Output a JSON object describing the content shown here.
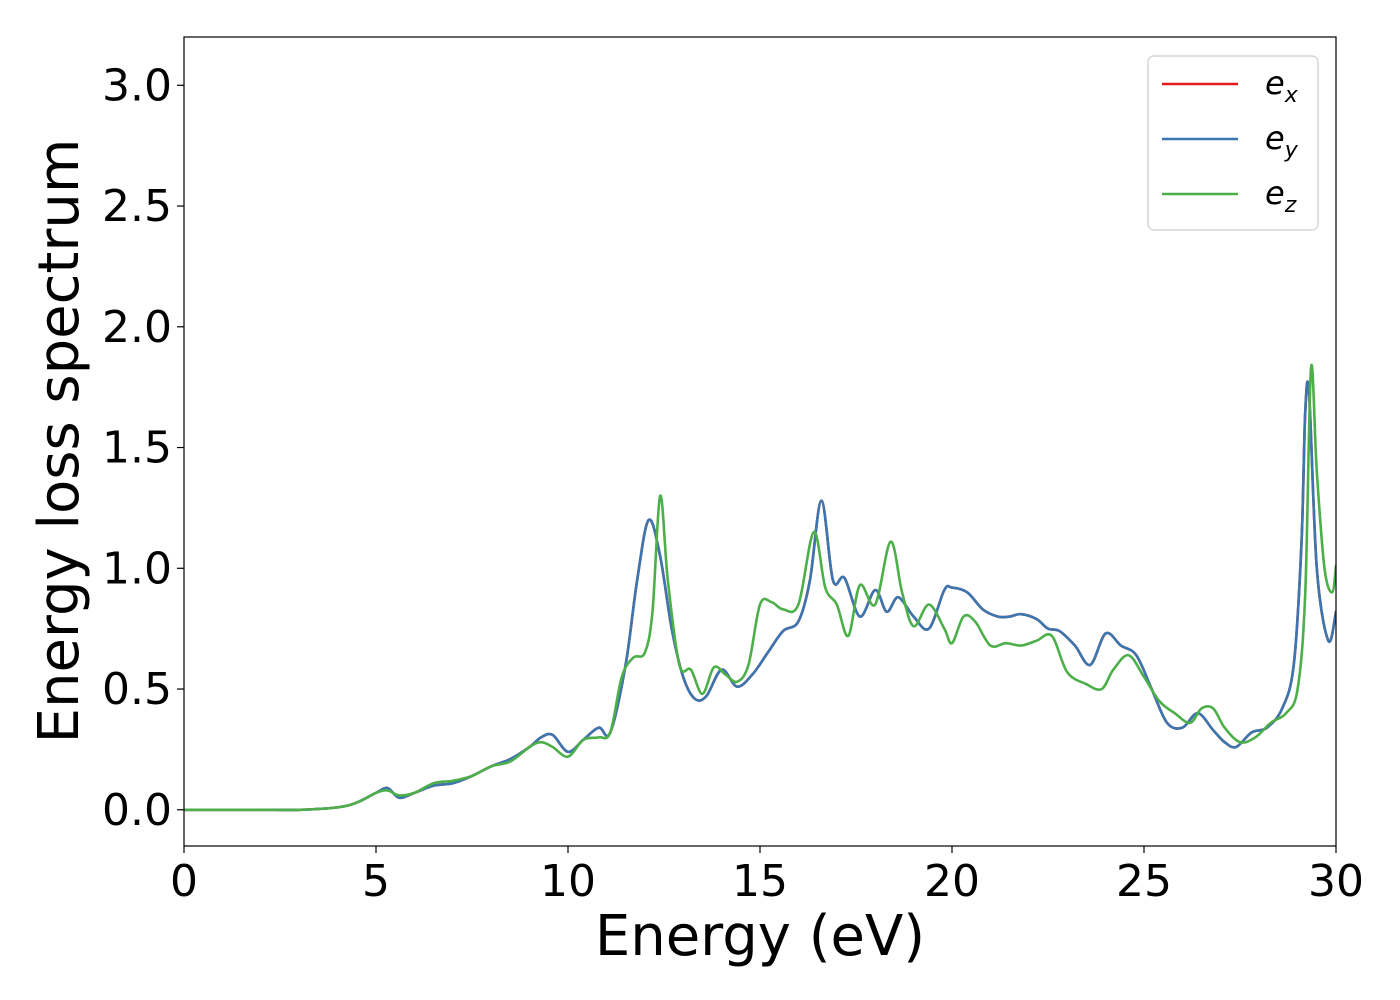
{
  "chart_data": {
    "type": "line",
    "xlabel": "Energy (eV)",
    "ylabel": "Energy loss spectrum",
    "xlim": [
      0,
      30
    ],
    "ylim": [
      -0.15,
      3.2
    ],
    "xticks": [
      0,
      5,
      10,
      15,
      20,
      25,
      30
    ],
    "yticks": [
      "0.0",
      "0.5",
      "1.0",
      "1.5",
      "2.0",
      "2.5",
      "3.0"
    ],
    "grid": false,
    "legend_position": "top-right",
    "series": [
      {
        "name": "e_x",
        "legend_main": "e",
        "legend_sub": "x",
        "color": "#e41a1c",
        "x": [
          0,
          1,
          2,
          3,
          4,
          4.5,
          5,
          5.3,
          5.6,
          6,
          6.5,
          7,
          7.5,
          8,
          8.5,
          9,
          9.3,
          9.6,
          10,
          10.4,
          10.8,
          11.1,
          11.5,
          11.8,
          12.1,
          12.4,
          12.7,
          13.0,
          13.3,
          13.6,
          14.0,
          14.4,
          14.8,
          15.2,
          15.6,
          16.0,
          16.3,
          16.6,
          16.9,
          17.2,
          17.6,
          18.0,
          18.3,
          18.6,
          19.0,
          19.4,
          19.8,
          20.0,
          20.4,
          20.8,
          21.2,
          21.5,
          21.8,
          22.2,
          22.5,
          22.8,
          23.2,
          23.6,
          24.0,
          24.4,
          24.8,
          25.2,
          25.6,
          26.0,
          26.4,
          26.8,
          27.1,
          27.4,
          27.8,
          28.2,
          28.6,
          28.9,
          29.1,
          29.2,
          29.3,
          29.5,
          29.8,
          30
        ],
        "y": [
          0,
          0,
          0,
          0,
          0.01,
          0.03,
          0.07,
          0.09,
          0.05,
          0.07,
          0.1,
          0.11,
          0.14,
          0.18,
          0.21,
          0.26,
          0.3,
          0.31,
          0.24,
          0.29,
          0.34,
          0.32,
          0.6,
          0.95,
          1.2,
          1.05,
          0.75,
          0.55,
          0.46,
          0.47,
          0.58,
          0.51,
          0.56,
          0.65,
          0.74,
          0.78,
          0.95,
          1.28,
          0.95,
          0.96,
          0.8,
          0.91,
          0.82,
          0.88,
          0.8,
          0.75,
          0.91,
          0.92,
          0.9,
          0.83,
          0.8,
          0.8,
          0.81,
          0.79,
          0.75,
          0.74,
          0.68,
          0.6,
          0.73,
          0.68,
          0.64,
          0.5,
          0.36,
          0.34,
          0.4,
          0.33,
          0.28,
          0.26,
          0.32,
          0.34,
          0.42,
          0.6,
          1.1,
          1.65,
          1.72,
          1.0,
          0.7,
          0.82
        ]
      },
      {
        "name": "e_y",
        "legend_main": "e",
        "legend_sub": "y",
        "color": "#3a77b0",
        "x": [
          0,
          1,
          2,
          3,
          4,
          4.5,
          5,
          5.3,
          5.6,
          6,
          6.5,
          7,
          7.5,
          8,
          8.5,
          9,
          9.3,
          9.6,
          10,
          10.4,
          10.8,
          11.1,
          11.5,
          11.8,
          12.1,
          12.4,
          12.7,
          13.0,
          13.3,
          13.6,
          14.0,
          14.4,
          14.8,
          15.2,
          15.6,
          16.0,
          16.3,
          16.6,
          16.9,
          17.2,
          17.6,
          18.0,
          18.3,
          18.6,
          19.0,
          19.4,
          19.8,
          20.0,
          20.4,
          20.8,
          21.2,
          21.5,
          21.8,
          22.2,
          22.5,
          22.8,
          23.2,
          23.6,
          24.0,
          24.4,
          24.8,
          25.2,
          25.6,
          26.0,
          26.4,
          26.8,
          27.1,
          27.4,
          27.8,
          28.2,
          28.6,
          28.9,
          29.1,
          29.2,
          29.3,
          29.5,
          29.8,
          30
        ],
        "y": [
          0,
          0,
          0,
          0,
          0.01,
          0.03,
          0.07,
          0.09,
          0.05,
          0.07,
          0.1,
          0.11,
          0.14,
          0.18,
          0.21,
          0.26,
          0.3,
          0.31,
          0.24,
          0.29,
          0.34,
          0.32,
          0.6,
          0.95,
          1.2,
          1.05,
          0.75,
          0.55,
          0.46,
          0.47,
          0.58,
          0.51,
          0.56,
          0.65,
          0.74,
          0.78,
          0.95,
          1.28,
          0.95,
          0.96,
          0.8,
          0.91,
          0.82,
          0.88,
          0.8,
          0.75,
          0.91,
          0.92,
          0.9,
          0.83,
          0.8,
          0.8,
          0.81,
          0.79,
          0.75,
          0.74,
          0.68,
          0.6,
          0.73,
          0.68,
          0.64,
          0.5,
          0.36,
          0.34,
          0.4,
          0.33,
          0.28,
          0.26,
          0.32,
          0.34,
          0.42,
          0.6,
          1.1,
          1.65,
          1.72,
          1.0,
          0.7,
          0.82
        ]
      },
      {
        "name": "e_z",
        "legend_main": "e",
        "legend_sub": "z",
        "color": "#4daf4a",
        "x": [
          0,
          1,
          2,
          3,
          4,
          4.5,
          5,
          5.3,
          5.6,
          6,
          6.5,
          7,
          7.5,
          8,
          8.5,
          9,
          9.3,
          9.6,
          10,
          10.4,
          10.8,
          11.1,
          11.4,
          11.7,
          12.0,
          12.2,
          12.4,
          12.6,
          12.9,
          13.2,
          13.5,
          13.8,
          14.1,
          14.4,
          14.7,
          15.0,
          15.3,
          15.6,
          16.0,
          16.4,
          16.7,
          17.0,
          17.3,
          17.6,
          18.0,
          18.4,
          18.7,
          19.0,
          19.4,
          19.8,
          20.0,
          20.3,
          20.6,
          21.0,
          21.4,
          21.8,
          22.2,
          22.6,
          23.0,
          23.5,
          23.9,
          24.2,
          24.6,
          25.0,
          25.4,
          25.8,
          26.2,
          26.5,
          26.8,
          27.1,
          27.5,
          27.9,
          28.3,
          28.7,
          29.0,
          29.2,
          29.35,
          29.5,
          29.7,
          29.9,
          30
        ],
        "y": [
          0,
          0,
          0,
          0,
          0.01,
          0.03,
          0.07,
          0.08,
          0.06,
          0.07,
          0.11,
          0.12,
          0.14,
          0.18,
          0.2,
          0.26,
          0.28,
          0.26,
          0.22,
          0.29,
          0.3,
          0.32,
          0.55,
          0.63,
          0.65,
          0.82,
          1.3,
          0.95,
          0.6,
          0.58,
          0.48,
          0.59,
          0.56,
          0.53,
          0.6,
          0.85,
          0.86,
          0.83,
          0.85,
          1.15,
          0.92,
          0.85,
          0.72,
          0.93,
          0.85,
          1.11,
          0.9,
          0.76,
          0.85,
          0.75,
          0.69,
          0.8,
          0.78,
          0.68,
          0.69,
          0.68,
          0.7,
          0.72,
          0.57,
          0.52,
          0.5,
          0.58,
          0.64,
          0.55,
          0.45,
          0.4,
          0.36,
          0.42,
          0.42,
          0.34,
          0.28,
          0.3,
          0.36,
          0.4,
          0.5,
          0.9,
          1.83,
          1.4,
          1.0,
          0.9,
          1.01
        ]
      }
    ]
  }
}
